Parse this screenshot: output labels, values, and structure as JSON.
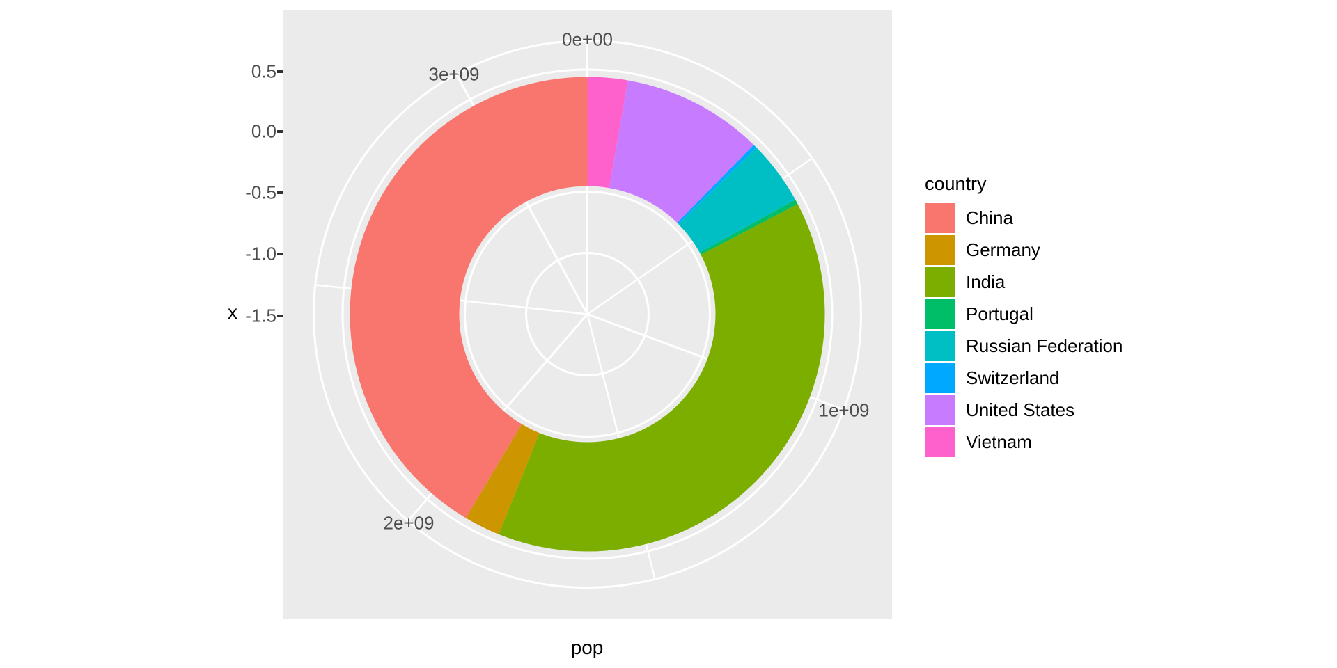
{
  "colors": {
    "panel_background": "#EBEBEB",
    "grid": "#FFFFFF",
    "tick_label": "#4D4D4D",
    "tick_mark": "#333333",
    "axis_title": "#000000"
  },
  "chart_data": {
    "type": "pie",
    "subtype": "donut-polar-coordinates",
    "title": "",
    "legend_title": "country",
    "series": [
      {
        "name": "China",
        "value": 1350695000,
        "color": "#F8766D"
      },
      {
        "name": "Germany",
        "value": 80425823,
        "color": "#CD9600"
      },
      {
        "name": "India",
        "value": 1263589639,
        "color": "#7CAE00"
      },
      {
        "name": "Portugal",
        "value": 10514844,
        "color": "#00BE67"
      },
      {
        "name": "Russian Federation",
        "value": 143178000,
        "color": "#00BFC4"
      },
      {
        "name": "Switzerland",
        "value": 7996861,
        "color": "#00A9FF"
      },
      {
        "name": "United States",
        "value": 313873685,
        "color": "#C77CFF"
      },
      {
        "name": "Vietnam",
        "value": 88772900,
        "color": "#FF61CC"
      }
    ],
    "stacking": "alphabetical-counterclockwise-from-top",
    "theta_axis": {
      "title": "pop",
      "tick_labels": [
        "0e+00",
        "1e+09",
        "2e+09",
        "3e+09"
      ],
      "major_breaks": [
        0,
        1000000000,
        2000000000,
        3000000000
      ],
      "minor_breaks": [
        500000000,
        1500000000,
        2500000000
      ]
    },
    "radial_axis": {
      "title": "x",
      "tick_labels": [
        "0.5",
        "0.0",
        "-0.5",
        "-1.0",
        "-1.5"
      ]
    },
    "legend_position": "right",
    "grid": true
  }
}
